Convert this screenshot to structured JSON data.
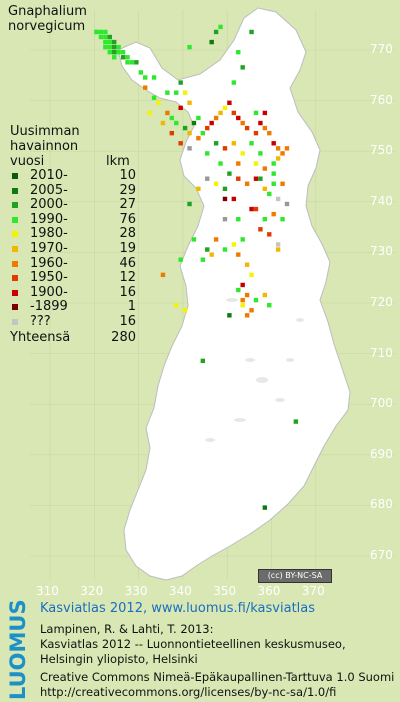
{
  "title": [
    "Gnaphalium",
    "norvegicum"
  ],
  "legend": {
    "heading": [
      "Uusimman",
      "havainnon",
      "vuosi"
    ],
    "count_heading": "lkm",
    "rows": [
      {
        "label": "2010-",
        "count": "10",
        "color": "#0a5c0a"
      },
      {
        "label": "2005-",
        "count": "29",
        "color": "#0f7a0f"
      },
      {
        "label": "2000-",
        "count": "27",
        "color": "#22a222"
      },
      {
        "label": "1990-",
        "count": "76",
        "color": "#2ee82e"
      },
      {
        "label": "1980-",
        "count": "28",
        "color": "#f4f400"
      },
      {
        "label": "1970-",
        "count": "19",
        "color": "#f0b800"
      },
      {
        "label": "1960-",
        "count": "46",
        "color": "#f07a00"
      },
      {
        "label": "1950-",
        "count": "12",
        "color": "#e03c00"
      },
      {
        "label": "1900-",
        "count": "16",
        "color": "#c80000"
      },
      {
        "label": "-1899",
        "count": "1",
        "color": "#7a0000"
      },
      {
        "label": "???",
        "count": "16",
        "color": "#c4c4c4"
      }
    ],
    "total_label": "Yhteensä",
    "total_count": "280"
  },
  "y_ticks": [
    "770",
    "760",
    "750",
    "740",
    "730",
    "720",
    "710",
    "700",
    "690",
    "680",
    "670"
  ],
  "x_ticks": [
    "310",
    "320",
    "330",
    "340",
    "350",
    "360",
    "370"
  ],
  "license_badge": "BY-NC-SA",
  "logo": "LUOMUS",
  "footer": {
    "url_line": "Kasviatlas 2012, www.luomus.fi/kasviatlas",
    "ref_lines": [
      "Lampinen, R. & Lahti, T. 2013:",
      "Kasviatlas 2012 -- Luonnontieteellinen keskusmuseo,",
      "Helsingin yliopisto, Helsinki"
    ],
    "license_lines": [
      "Creative Commons Nimeä-Epäkaupallinen-Tarttuva 1.0 Suomi",
      "http://creativecommons.org/licenses/by-nc-sa/1.0/fi"
    ]
  },
  "colors": {
    "land": "#ffffff",
    "background": "#d8e7b4",
    "grid": "#c8d8a0",
    "logo": "#1e90c8"
  },
  "map_data": {
    "type": "grid-occurrence",
    "x_range": [
      305,
      372
    ],
    "y_range": [
      664,
      778
    ],
    "cells": [
      [
        320,
        774,
        3
      ],
      [
        320,
        774,
        3
      ],
      [
        321,
        774,
        3
      ],
      [
        322,
        774,
        3
      ],
      [
        321,
        773,
        3
      ],
      [
        322,
        773,
        3
      ],
      [
        323,
        773,
        2
      ],
      [
        322,
        772,
        3
      ],
      [
        323,
        772,
        3
      ],
      [
        324,
        772,
        2
      ],
      [
        323,
        771,
        3
      ],
      [
        324,
        771,
        2
      ],
      [
        325,
        771,
        3
      ],
      [
        322,
        771,
        3
      ],
      [
        326,
        770,
        3
      ],
      [
        324,
        770,
        2
      ],
      [
        325,
        770,
        3
      ],
      [
        323,
        770,
        3
      ],
      [
        327,
        769,
        3
      ],
      [
        326,
        769,
        2
      ],
      [
        324,
        769,
        3
      ],
      [
        328,
        768,
        3
      ],
      [
        327,
        768,
        3
      ],
      [
        329,
        768,
        2
      ],
      [
        330,
        766,
        3
      ],
      [
        331,
        765,
        3
      ],
      [
        333,
        765,
        3
      ],
      [
        336,
        762,
        3
      ],
      [
        339,
        764,
        2
      ],
      [
        338,
        762,
        3
      ],
      [
        340,
        762,
        4
      ],
      [
        336,
        758,
        6
      ],
      [
        337,
        757,
        3
      ],
      [
        339,
        759,
        8
      ],
      [
        341,
        760,
        5
      ],
      [
        338,
        756,
        3
      ],
      [
        340,
        755,
        2
      ],
      [
        342,
        756,
        1
      ],
      [
        343,
        757,
        3
      ],
      [
        341,
        754,
        5
      ],
      [
        343,
        753,
        6
      ],
      [
        344,
        754,
        3
      ],
      [
        345,
        755,
        7
      ],
      [
        346,
        756,
        8
      ],
      [
        347,
        757,
        6
      ],
      [
        348,
        758,
        5
      ],
      [
        349,
        759,
        4
      ],
      [
        350,
        760,
        8
      ],
      [
        351,
        758,
        7
      ],
      [
        352,
        757,
        8
      ],
      [
        353,
        756,
        6
      ],
      [
        354,
        755,
        7
      ],
      [
        356,
        758,
        3
      ],
      [
        357,
        756,
        8
      ],
      [
        358,
        755,
        6
      ],
      [
        359,
        754,
        6
      ],
      [
        360,
        752,
        8
      ],
      [
        361,
        751,
        6
      ],
      [
        362,
        750,
        6
      ],
      [
        363,
        751,
        6
      ],
      [
        361,
        749,
        5
      ],
      [
        360,
        748,
        3
      ],
      [
        358,
        747,
        6
      ],
      [
        356,
        748,
        4
      ],
      [
        357,
        750,
        3
      ],
      [
        355,
        752,
        3
      ],
      [
        353,
        750,
        4
      ],
      [
        351,
        752,
        5
      ],
      [
        349,
        751,
        7
      ],
      [
        347,
        752,
        2
      ],
      [
        345,
        750,
        3
      ],
      [
        348,
        748,
        3
      ],
      [
        350,
        746,
        2
      ],
      [
        352,
        745,
        7
      ],
      [
        354,
        744,
        6
      ],
      [
        356,
        745,
        8
      ],
      [
        358,
        743,
        5
      ],
      [
        359,
        742,
        3
      ],
      [
        361,
        741,
        10
      ],
      [
        360,
        738,
        6
      ],
      [
        358,
        737,
        3
      ],
      [
        356,
        739,
        7
      ],
      [
        360,
        746,
        3
      ],
      [
        362,
        744,
        6
      ],
      [
        349,
        741,
        9
      ],
      [
        351,
        741,
        8
      ],
      [
        355,
        739,
        8
      ],
      [
        357,
        735,
        7
      ],
      [
        359,
        734,
        7
      ],
      [
        361,
        732,
        10
      ],
      [
        353,
        733,
        3
      ],
      [
        351,
        732,
        4
      ],
      [
        349,
        731,
        3
      ],
      [
        347,
        733,
        6
      ],
      [
        346,
        730,
        5
      ],
      [
        345,
        731,
        2
      ],
      [
        352,
        730,
        6
      ],
      [
        354,
        728,
        5
      ],
      [
        355,
        726,
        4
      ],
      [
        353,
        724,
        8
      ],
      [
        352,
        723,
        3
      ],
      [
        354,
        722,
        6
      ],
      [
        353,
        720,
        4
      ],
      [
        355,
        719,
        6
      ],
      [
        354,
        718,
        6
      ],
      [
        353,
        721,
        6
      ],
      [
        356,
        721,
        3
      ],
      [
        358,
        722,
        5
      ],
      [
        359,
        720,
        3
      ],
      [
        350,
        718,
        1
      ],
      [
        340,
        719,
        4
      ],
      [
        335,
        726,
        6
      ],
      [
        338,
        720,
        4
      ],
      [
        344,
        729,
        3
      ],
      [
        342,
        733,
        3
      ],
      [
        339,
        729,
        3
      ],
      [
        341,
        740,
        2
      ],
      [
        343,
        743,
        5
      ],
      [
        347,
        744,
        4
      ],
      [
        345,
        745,
        11
      ],
      [
        351,
        764,
        3
      ],
      [
        353,
        767,
        2
      ],
      [
        352,
        770,
        3
      ],
      [
        347,
        774,
        2
      ],
      [
        346,
        772,
        1
      ],
      [
        348,
        775,
        3
      ],
      [
        355,
        774,
        2
      ],
      [
        341,
        771,
        3
      ],
      [
        331,
        763,
        6
      ],
      [
        333,
        761,
        3
      ],
      [
        334,
        760,
        4
      ],
      [
        332,
        758,
        4
      ],
      [
        335,
        756,
        5
      ],
      [
        337,
        754,
        7
      ],
      [
        339,
        752,
        7
      ],
      [
        341,
        751,
        11
      ],
      [
        349,
        737,
        11
      ],
      [
        352,
        737,
        3
      ],
      [
        357,
        745,
        2
      ],
      [
        360,
        744,
        3
      ],
      [
        363,
        740,
        11
      ],
      [
        362,
        737,
        3
      ],
      [
        361,
        731,
        5
      ],
      [
        344,
        709,
        2
      ],
      [
        365,
        697,
        2
      ],
      [
        358,
        680,
        1
      ],
      [
        349,
        743,
        2
      ],
      [
        352,
        748,
        6
      ],
      [
        356,
        754,
        7
      ],
      [
        358,
        758,
        8
      ]
    ]
  }
}
